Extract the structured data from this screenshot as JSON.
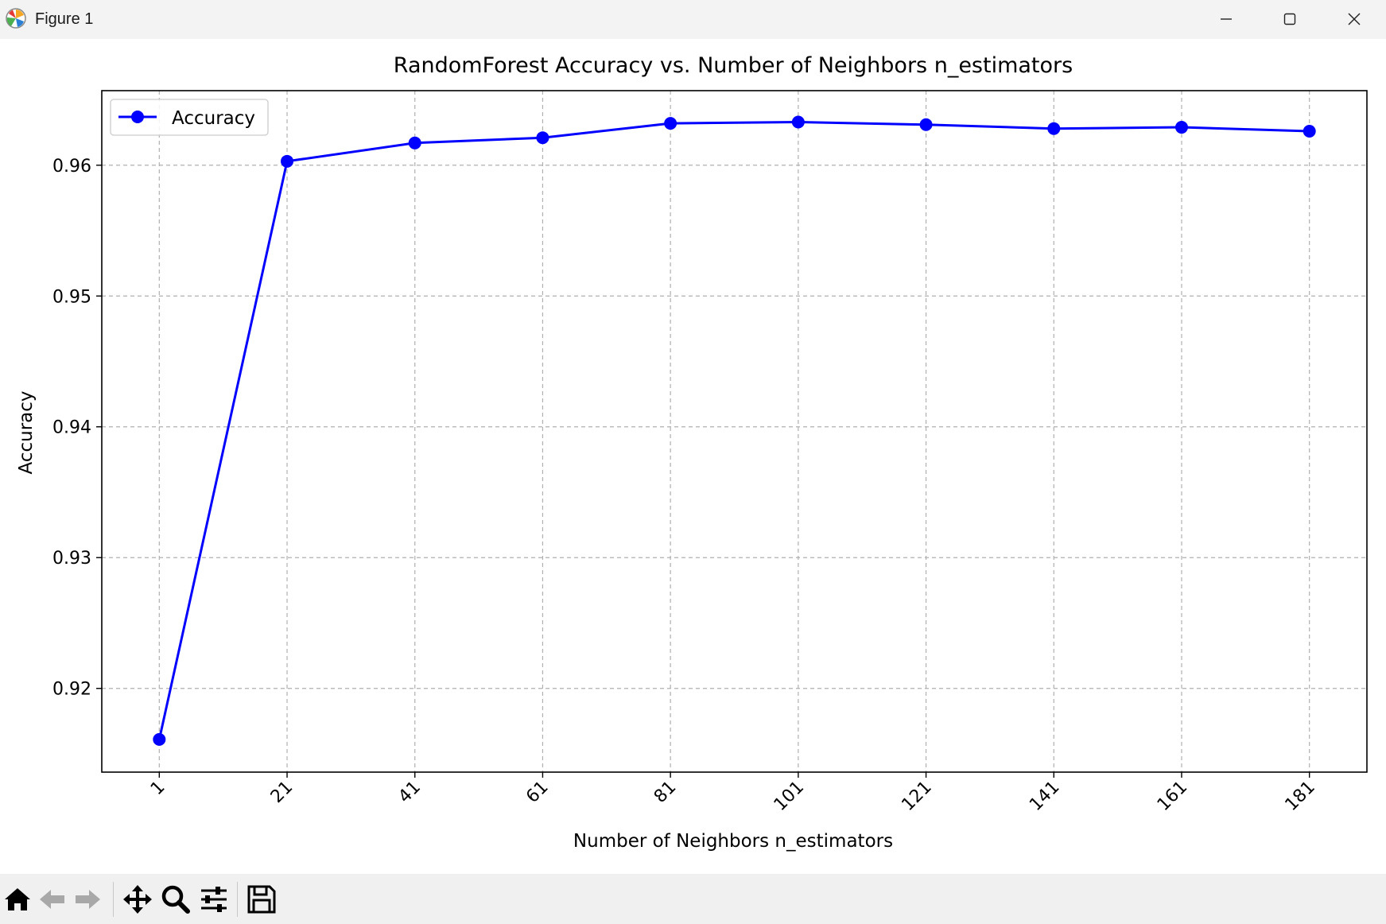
{
  "window": {
    "title": "Figure 1",
    "icon": "matplotlib-icon",
    "controls": [
      "minimize-icon",
      "maximize-icon",
      "close-icon"
    ]
  },
  "toolbar": {
    "buttons": [
      "home-icon",
      "back-arrow-icon",
      "forward-arrow-icon",
      "pan-move-icon",
      "zoom-magnifier-icon",
      "configure-subplots-icon",
      "save-floppy-icon"
    ]
  },
  "chart_data": {
    "type": "line",
    "title": "RandomForest Accuracy vs. Number of Neighbors n_estimators",
    "xlabel": "Number of Neighbors n_estimators",
    "ylabel": "Accuracy",
    "x": [
      1,
      21,
      41,
      61,
      81,
      101,
      121,
      141,
      161,
      181
    ],
    "xticks": [
      "1",
      "21",
      "41",
      "61",
      "81",
      "101",
      "121",
      "141",
      "161",
      "181"
    ],
    "yticks": [
      "0.92",
      "0.93",
      "0.94",
      "0.95",
      "0.96"
    ],
    "ytick_values": [
      0.92,
      0.93,
      0.94,
      0.95,
      0.96
    ],
    "xlim": [
      -8,
      190
    ],
    "ylim": [
      0.9136,
      0.9657
    ],
    "series": [
      {
        "name": "Accuracy",
        "color": "#0000ff",
        "marker": "circle",
        "values": [
          0.9161,
          0.9603,
          0.9617,
          0.9621,
          0.9632,
          0.9633,
          0.9631,
          0.9628,
          0.9629,
          0.9626
        ]
      }
    ],
    "grid": true,
    "grid_style": "dashed",
    "legend_position": "top-left",
    "xtick_rotation": -45
  }
}
